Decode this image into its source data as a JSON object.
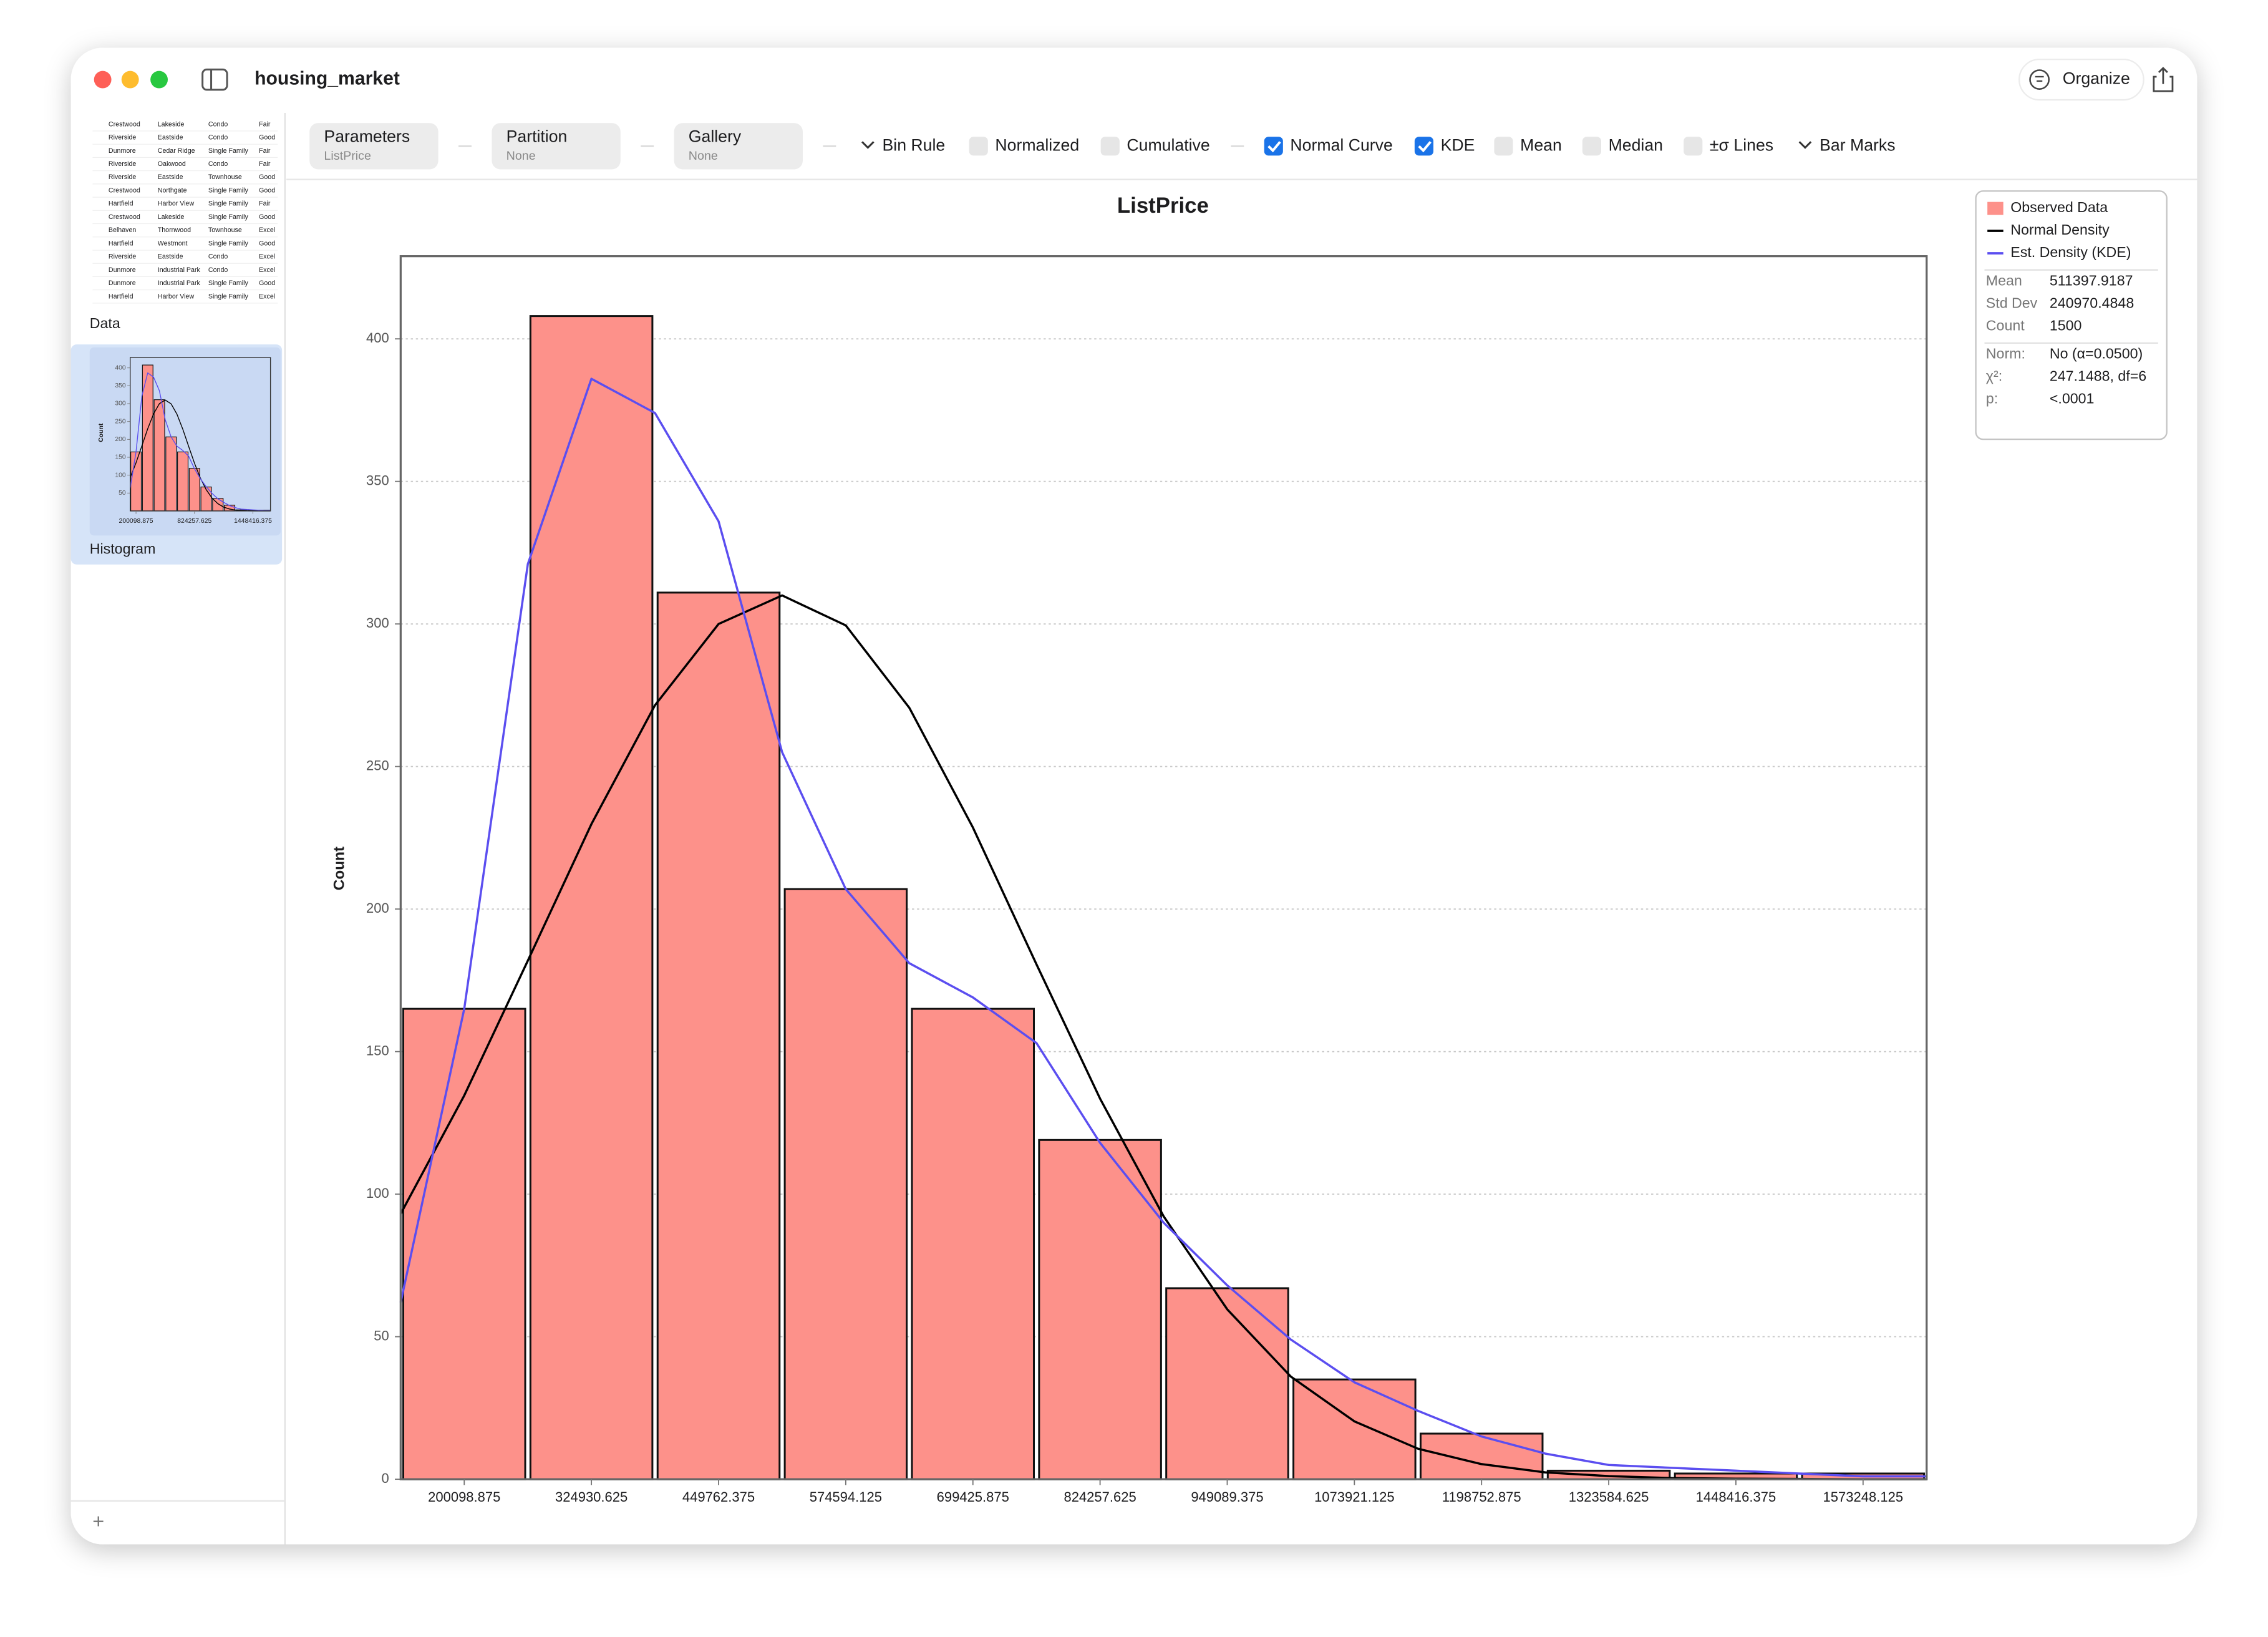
{
  "window": {
    "title": "housing_market",
    "organize": "Organize"
  },
  "sidebar": {
    "items": [
      {
        "label": "Data"
      },
      {
        "label": "Histogram"
      }
    ],
    "add": "+",
    "data_rows": [
      [
        "Crestwood",
        "Lakeside",
        "Condo",
        "Fair"
      ],
      [
        "Riverside",
        "Eastside",
        "Condo",
        "Good"
      ],
      [
        "Dunmore",
        "Cedar Ridge",
        "Single Family",
        "Fair"
      ],
      [
        "Riverside",
        "Oakwood",
        "Condo",
        "Fair"
      ],
      [
        "Riverside",
        "Eastside",
        "Townhouse",
        "Good"
      ],
      [
        "Crestwood",
        "Northgate",
        "Single Family",
        "Good"
      ],
      [
        "Hartfield",
        "Harbor View",
        "Single Family",
        "Fair"
      ],
      [
        "Crestwood",
        "Lakeside",
        "Single Family",
        "Good"
      ],
      [
        "Belhaven",
        "Thornwood",
        "Townhouse",
        "Excel"
      ],
      [
        "Hartfield",
        "Westmont",
        "Single Family",
        "Good"
      ],
      [
        "Riverside",
        "Eastside",
        "Condo",
        "Excel"
      ],
      [
        "Dunmore",
        "Industrial Park",
        "Condo",
        "Excel"
      ],
      [
        "Dunmore",
        "Industrial Park",
        "Single Family",
        "Good"
      ],
      [
        "Hartfield",
        "Harbor View",
        "Single Family",
        "Excel"
      ]
    ]
  },
  "toolbar": {
    "selectors": [
      {
        "label": "Parameters",
        "value": "ListPrice"
      },
      {
        "label": "Partition",
        "value": "None"
      },
      {
        "label": "Gallery",
        "value": "None"
      }
    ],
    "options": [
      {
        "label": "Bin Rule",
        "dropdown": true
      },
      {
        "label": "Normalized",
        "checked": false
      },
      {
        "label": "Cumulative",
        "checked": false
      },
      {
        "label": "Normal Curve",
        "checked": true
      },
      {
        "label": "KDE",
        "checked": true
      },
      {
        "label": "Mean",
        "checked": false
      },
      {
        "label": "Median",
        "checked": false
      },
      {
        "label": "±σ Lines",
        "checked": false
      },
      {
        "label": "Bar Marks",
        "dropdown": true
      }
    ]
  },
  "chart_data": {
    "type": "histogram",
    "title": "ListPrice",
    "y_label": "Count",
    "bins": [
      137683,
      262514.75,
      387346.5,
      512178.25,
      637010,
      761841.75,
      886673.5,
      1011505.25,
      1136337,
      1261168.75,
      1386000.5,
      1510832.25,
      1635664
    ],
    "xlim": [
      137683,
      1635664
    ],
    "xticks": [
      200098.875,
      324930.625,
      449762.375,
      574594.125,
      699425.875,
      824257.625,
      949089.375,
      1073921.125,
      1198752.875,
      1323584.625,
      1448416.375,
      1573248.125
    ],
    "ylim": [
      0,
      429
    ],
    "yticks": [
      0,
      50,
      100,
      150,
      200,
      250,
      300,
      350,
      400
    ],
    "grid": true,
    "legend": "upper right",
    "series": [
      {
        "name": "Observed Data",
        "color": "#fd918a",
        "values": [
          165,
          408,
          311,
          207,
          165,
          119,
          67,
          35,
          16,
          3,
          2,
          2
        ]
      },
      {
        "name": "Normal Density",
        "color": "#000000",
        "x": [
          137683,
          200098.875,
          262514.75,
          324930.625,
          387346.5,
          449762.375,
          512178.25,
          574594.125,
          637010,
          699425.875,
          761841.75,
          824257.625,
          886673.5,
          949089.375,
          1011505.25,
          1073921.125,
          1136337,
          1198752.875,
          1261168.75,
          1323584.625,
          1386000.5,
          1448416.375,
          1510832.25,
          1573248.125,
          1635664
        ],
        "values": [
          93.1,
          134.6,
          181.9,
          229.8,
          271.5,
          300.0,
          310.0,
          299.5,
          270.6,
          228.6,
          180.6,
          133.5,
          92.2,
          59.6,
          36.0,
          20.3,
          10.7,
          5.3,
          2.4,
          1.1,
          0.4,
          0.2,
          0.1,
          0,
          0
        ]
      },
      {
        "name": "Est. Density (KDE)",
        "color": "#5b4ef0",
        "x": [
          137683,
          200098.875,
          262514.75,
          324930.625,
          387346.5,
          449762.375,
          512178.25,
          574594.125,
          637010,
          699425.875,
          761841.75,
          824257.625,
          886673.5,
          949089.375,
          1011505.25,
          1073921.125,
          1136337,
          1198752.875,
          1261168.75,
          1323584.625,
          1386000.5,
          1448416.375,
          1510832.25,
          1573248.125,
          1635664
        ],
        "values": [
          62,
          165,
          321,
          386,
          374,
          336,
          255,
          207,
          181,
          169,
          153,
          118,
          90,
          68,
          49,
          34,
          24,
          15,
          9,
          5,
          4,
          3,
          2,
          1,
          1
        ]
      }
    ],
    "stats": [
      {
        "label": "Mean",
        "value": "511397.9187"
      },
      {
        "label": "Std Dev",
        "value": "240970.4848"
      },
      {
        "label": "Count",
        "value": "1500"
      }
    ],
    "test": [
      {
        "label": "Norm:",
        "value": "No (α=0.0500)"
      },
      {
        "label": "χ²:",
        "value": "247.1488, df=6"
      },
      {
        "label": "p:",
        "value": "<.0001"
      }
    ]
  }
}
